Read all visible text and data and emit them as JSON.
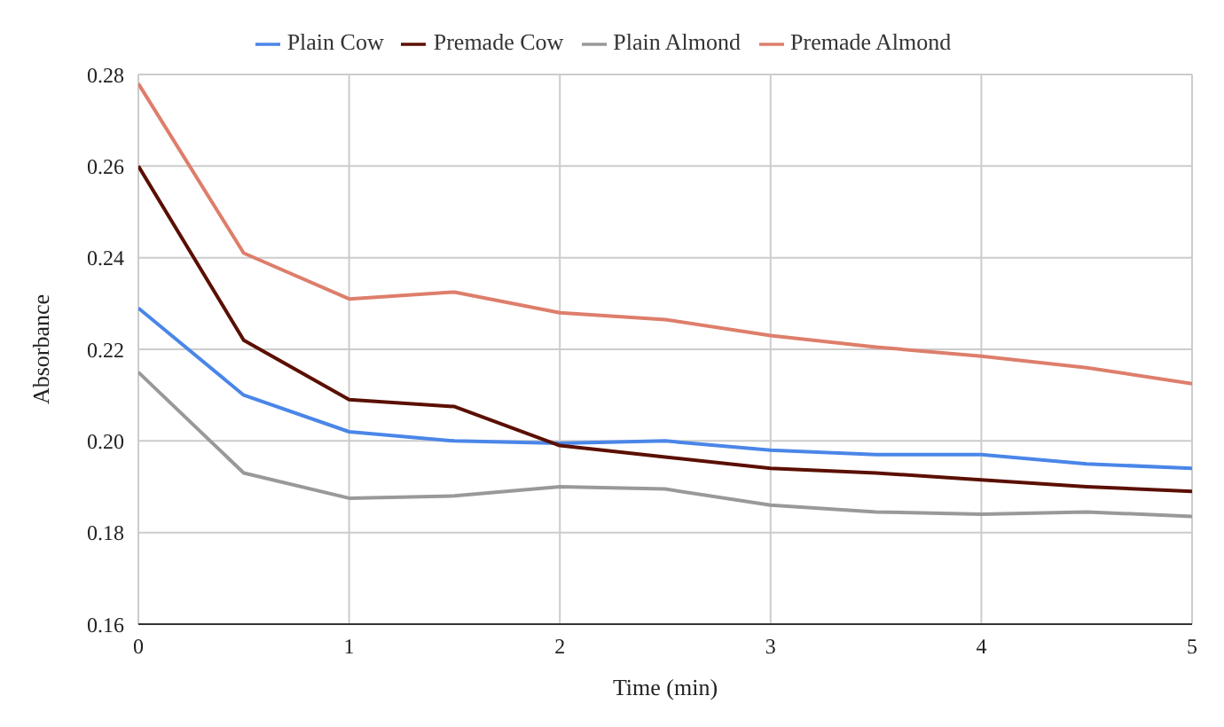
{
  "chart_data": {
    "type": "line",
    "xlabel": "Time (min)",
    "ylabel": "Absorbance",
    "x": [
      0,
      0.5,
      1,
      1.5,
      2,
      2.5,
      3,
      3.5,
      4,
      4.5,
      5
    ],
    "series": [
      {
        "name": "Plain Cow",
        "color": "#4a86e8",
        "values": [
          0.229,
          0.21,
          0.202,
          0.2,
          0.1995,
          0.2,
          0.198,
          0.197,
          0.197,
          0.195,
          0.194
        ]
      },
      {
        "name": "Premade Cow",
        "color": "#5b0f00",
        "values": [
          0.26,
          0.222,
          0.209,
          0.2075,
          0.199,
          0.1965,
          0.194,
          0.193,
          0.1915,
          0.19,
          0.189
        ]
      },
      {
        "name": "Plain Almond",
        "color": "#999999",
        "values": [
          0.215,
          0.193,
          0.1875,
          0.188,
          0.19,
          0.1895,
          0.186,
          0.1845,
          0.184,
          0.1845,
          0.1835
        ]
      },
      {
        "name": "Premade Almond",
        "color": "#dd7e6b",
        "values": [
          0.278,
          0.241,
          0.231,
          0.2325,
          0.228,
          0.2265,
          0.223,
          0.2205,
          0.2185,
          0.216,
          0.2125
        ]
      }
    ],
    "xlim": [
      0,
      5
    ],
    "xticks": [
      0,
      1,
      2,
      3,
      4,
      5
    ],
    "ylim": [
      0.16,
      0.28
    ],
    "yticks": [
      {
        "value": 0.16,
        "label": "0.16"
      },
      {
        "value": 0.18,
        "label": "0.18"
      },
      {
        "value": 0.2,
        "label": "0.20"
      },
      {
        "value": 0.22,
        "label": "0.22"
      },
      {
        "value": 0.24,
        "label": "0.24"
      },
      {
        "value": 0.26,
        "label": "0.26"
      },
      {
        "value": 0.28,
        "label": "0.28"
      }
    ],
    "grid": true,
    "legend": "top",
    "marker": "none",
    "line_style": "solid"
  }
}
